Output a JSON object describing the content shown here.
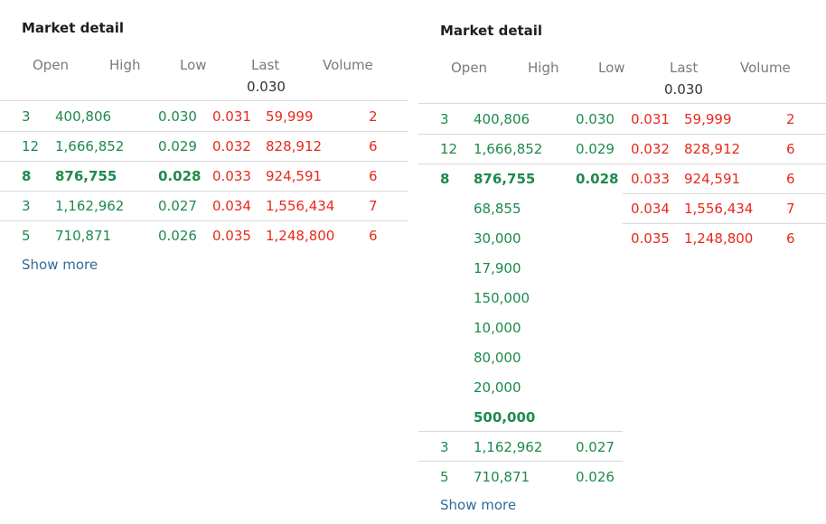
{
  "colors": {
    "bid": "#1e8a4c",
    "ask": "#e8291c",
    "link": "#2f6b9a"
  },
  "panel1": {
    "title": "Market detail",
    "headers": [
      "Open",
      "High",
      "Low",
      "Last",
      "Volume"
    ],
    "last": "0.030",
    "rows": [
      {
        "open": "3",
        "high": "400,806",
        "low": "0.030",
        "last": "0.031",
        "lastvol": "59,999",
        "volume": "2"
      },
      {
        "open": "12",
        "high": "1,666,852",
        "low": "0.029",
        "last": "0.032",
        "lastvol": "828,912",
        "volume": "6"
      },
      {
        "open": "8",
        "high": "876,755",
        "low": "0.028",
        "last": "0.033",
        "lastvol": "924,591",
        "volume": "6"
      },
      {
        "open": "3",
        "high": "1,162,962",
        "low": "0.027",
        "last": "0.034",
        "lastvol": "1,556,434",
        "volume": "7"
      },
      {
        "open": "5",
        "high": "710,871",
        "low": "0.026",
        "last": "0.035",
        "lastvol": "1,248,800",
        "volume": "6"
      }
    ],
    "show_more": "Show more"
  },
  "panel2": {
    "title": "Market detail",
    "headers": [
      "Open",
      "High",
      "Low",
      "Last",
      "Volume"
    ],
    "last": "0.030",
    "bid_rows": [
      {
        "open": "3",
        "high": "400,806",
        "low": "0.030"
      },
      {
        "open": "12",
        "high": "1,666,852",
        "low": "0.029"
      },
      {
        "open": "8",
        "high": "876,755",
        "low": "0.028"
      }
    ],
    "breakdown": [
      "68,855",
      "30,000",
      "17,900",
      "150,000",
      "10,000",
      "80,000",
      "20,000",
      "500,000"
    ],
    "bid_rows_after": [
      {
        "open": "3",
        "high": "1,162,962",
        "low": "0.027"
      },
      {
        "open": "5",
        "high": "710,871",
        "low": "0.026"
      }
    ],
    "ask_rows": [
      {
        "last": "0.031",
        "lastvol": "59,999",
        "volume": "2"
      },
      {
        "last": "0.032",
        "lastvol": "828,912",
        "volume": "6"
      },
      {
        "last": "0.033",
        "lastvol": "924,591",
        "volume": "6"
      },
      {
        "last": "0.034",
        "lastvol": "1,556,434",
        "volume": "7"
      },
      {
        "last": "0.035",
        "lastvol": "1,248,800",
        "volume": "6"
      }
    ],
    "show_more": "Show more"
  }
}
